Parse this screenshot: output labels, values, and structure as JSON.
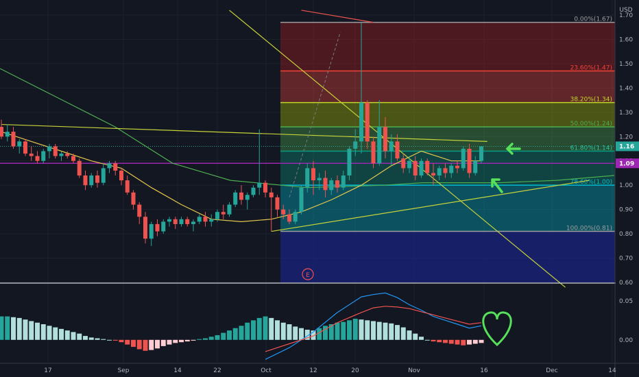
{
  "colors": {
    "background": "#131722",
    "grid": "#1e222d",
    "up": "#26a69a",
    "down": "#ef5350",
    "ma_slow": "#4caf50",
    "ma_fast": "#e6c84a",
    "trendline": "#c8d43a",
    "macd": "#2196f3",
    "signal": "#ef5350",
    "hist_up_strong": "#26a69a",
    "hist_up_weak": "#b2dfdb",
    "hist_down_strong": "#ef5350",
    "hist_down_weak": "#ffcdd2",
    "arrow": "#57e05a",
    "heart": "#57e05a",
    "price_tag": "#26a69a",
    "level_tag": "#9c27b0",
    "earnings": "#ef5350"
  },
  "labels": {
    "currency": "USD",
    "earnings": "E",
    "last_price": "1.16",
    "level_price": "1.09"
  },
  "icons": {
    "arrow_right": "green-arrow-left-icon",
    "arrow_up": "green-arrow-up-icon",
    "heart": "heart-icon"
  },
  "chart_data": {
    "type": "candlestick",
    "price_axis": {
      "ylim": [
        0.6,
        1.7
      ],
      "ticks": [
        "0.60",
        "0.70",
        "0.80",
        "0.90",
        "1.00",
        "1.10",
        "1.20",
        "1.30",
        "1.40",
        "1.50",
        "1.60",
        "1.70"
      ]
    },
    "x_axis": {
      "ticks": [
        "17",
        "Sep",
        "14",
        "22",
        "Oct",
        "12",
        "20",
        "Nov",
        "16",
        "Dec",
        "14"
      ]
    },
    "fib_levels": [
      {
        "label": "0.00%(1.67)",
        "value": 1.67,
        "color": "#b71c1c",
        "line": "#9e9e9e",
        "text": "#9e9e9e"
      },
      {
        "label": "23.60%(1.47)",
        "value": 1.47,
        "color": "#f44336",
        "line": "#f44336",
        "text": "#f44336"
      },
      {
        "label": "38.20%(1.34)",
        "value": 1.34,
        "color": "#b5c900",
        "line": "#c0d729",
        "text": "#c0d729"
      },
      {
        "label": "50.00%(1.24)",
        "value": 1.24,
        "color": "#4caf50",
        "line": "#4caf50",
        "text": "#4caf50"
      },
      {
        "label": "61.80%(1.14)",
        "value": 1.14,
        "color": "#089981",
        "line": "#089981",
        "text": "#26c6a0"
      },
      {
        "label": "78.60%(1.00)",
        "value": 1.0,
        "color": "#00bcd4",
        "line": "#00bcd4",
        "text": "#00bcd4"
      },
      {
        "label": "100.00%(0.81)",
        "value": 0.81,
        "color": "#787b86",
        "line": "#9e9e9e",
        "text": "#9e9e9e"
      }
    ],
    "fib_extension_below": {
      "color": "#1a237e"
    },
    "horizontal_level": 1.09,
    "last_price": 1.16,
    "candles": [
      [
        1.24,
        1.27,
        1.19,
        1.2
      ],
      [
        1.2,
        1.25,
        1.18,
        1.22
      ],
      [
        1.22,
        1.24,
        1.15,
        1.16
      ],
      [
        1.16,
        1.19,
        1.13,
        1.18
      ],
      [
        1.18,
        1.19,
        1.12,
        1.13
      ],
      [
        1.13,
        1.16,
        1.1,
        1.12
      ],
      [
        1.12,
        1.14,
        1.09,
        1.1
      ],
      [
        1.1,
        1.15,
        1.09,
        1.14
      ],
      [
        1.14,
        1.17,
        1.11,
        1.16
      ],
      [
        1.16,
        1.17,
        1.11,
        1.12
      ],
      [
        1.12,
        1.14,
        1.1,
        1.13
      ],
      [
        1.13,
        1.14,
        1.11,
        1.12
      ],
      [
        1.12,
        1.13,
        1.09,
        1.1
      ],
      [
        1.1,
        1.11,
        1.03,
        1.04
      ],
      [
        1.04,
        1.06,
        0.98,
        1.0
      ],
      [
        1.0,
        1.05,
        0.99,
        1.04
      ],
      [
        1.04,
        1.06,
        0.99,
        1.01
      ],
      [
        1.01,
        1.09,
        1.0,
        1.07
      ],
      [
        1.07,
        1.1,
        1.05,
        1.09
      ],
      [
        1.09,
        1.1,
        1.04,
        1.06
      ],
      [
        1.06,
        1.07,
        1.0,
        1.02
      ],
      [
        1.02,
        1.04,
        0.96,
        0.97
      ],
      [
        0.97,
        0.98,
        0.9,
        0.92
      ],
      [
        0.92,
        0.93,
        0.84,
        0.87
      ],
      [
        0.87,
        0.89,
        0.76,
        0.78
      ],
      [
        0.78,
        0.85,
        0.75,
        0.84
      ],
      [
        0.84,
        0.86,
        0.79,
        0.81
      ],
      [
        0.81,
        0.86,
        0.8,
        0.85
      ],
      [
        0.85,
        0.87,
        0.83,
        0.86
      ],
      [
        0.86,
        0.87,
        0.82,
        0.84
      ],
      [
        0.84,
        0.87,
        0.83,
        0.86
      ],
      [
        0.86,
        0.87,
        0.83,
        0.84
      ],
      [
        0.84,
        0.86,
        0.81,
        0.85
      ],
      [
        0.85,
        0.88,
        0.84,
        0.87
      ],
      [
        0.87,
        0.89,
        0.83,
        0.85
      ],
      [
        0.85,
        0.88,
        0.83,
        0.86
      ],
      [
        0.86,
        0.9,
        0.85,
        0.89
      ],
      [
        0.89,
        0.92,
        0.86,
        0.88
      ],
      [
        0.88,
        0.93,
        0.87,
        0.92
      ],
      [
        0.92,
        0.98,
        0.91,
        0.97
      ],
      [
        0.97,
        1.0,
        0.92,
        0.94
      ],
      [
        0.94,
        0.97,
        0.9,
        0.96
      ],
      [
        0.96,
        1.0,
        0.95,
        0.99
      ],
      [
        0.99,
        1.23,
        0.96,
        1.01
      ],
      [
        1.01,
        1.02,
        0.95,
        0.97
      ],
      [
        0.97,
        0.99,
        0.81,
        0.95
      ],
      [
        0.95,
        0.96,
        0.87,
        0.9
      ],
      [
        0.9,
        0.92,
        0.86,
        0.88
      ],
      [
        0.88,
        0.9,
        0.84,
        0.85
      ],
      [
        0.85,
        0.9,
        0.84,
        0.89
      ],
      [
        0.89,
        1.0,
        0.88,
        0.99
      ],
      [
        0.99,
        1.09,
        0.97,
        1.07
      ],
      [
        1.07,
        1.1,
        0.96,
        1.02
      ],
      [
        1.02,
        1.05,
        0.98,
        1.03
      ],
      [
        1.03,
        1.06,
        0.95,
        0.98
      ],
      [
        0.98,
        1.03,
        0.96,
        1.02
      ],
      [
        1.02,
        1.04,
        0.97,
        0.99
      ],
      [
        0.99,
        1.06,
        0.98,
        1.04
      ],
      [
        1.04,
        1.16,
        1.02,
        1.15
      ],
      [
        1.15,
        1.23,
        1.12,
        1.18
      ],
      [
        1.18,
        1.67,
        1.13,
        1.34
      ],
      [
        1.34,
        1.35,
        1.15,
        1.18
      ],
      [
        1.18,
        1.2,
        1.07,
        1.09
      ],
      [
        1.09,
        1.35,
        1.08,
        1.24
      ],
      [
        1.24,
        1.28,
        1.11,
        1.14
      ],
      [
        1.14,
        1.21,
        1.08,
        1.18
      ],
      [
        1.18,
        1.21,
        1.1,
        1.11
      ],
      [
        1.11,
        1.13,
        1.05,
        1.07
      ],
      [
        1.07,
        1.12,
        1.05,
        1.1
      ],
      [
        1.1,
        1.12,
        1.02,
        1.04
      ],
      [
        1.04,
        1.11,
        1.03,
        1.1
      ],
      [
        1.1,
        1.11,
        1.04,
        1.05
      ],
      [
        1.05,
        1.09,
        1.0,
        1.04
      ],
      [
        1.04,
        1.08,
        1.02,
        1.07
      ],
      [
        1.07,
        1.09,
        1.03,
        1.05
      ],
      [
        1.05,
        1.09,
        1.03,
        1.08
      ],
      [
        1.08,
        1.1,
        1.05,
        1.07
      ],
      [
        1.07,
        1.16,
        1.06,
        1.15
      ],
      [
        1.15,
        1.17,
        1.03,
        1.05
      ],
      [
        1.05,
        1.12,
        1.04,
        1.1
      ],
      [
        1.1,
        1.16,
        1.09,
        1.16
      ]
    ],
    "ma_slow": [
      [
        0,
        1.48
      ],
      [
        15,
        1.36
      ],
      [
        30,
        1.24
      ],
      [
        45,
        1.09
      ],
      [
        60,
        1.02
      ],
      [
        80,
        0.99
      ],
      [
        100,
        1.0
      ],
      [
        110,
        1.01
      ],
      [
        130,
        1.01
      ],
      [
        145,
        1.02
      ],
      [
        160,
        1.04
      ]
    ],
    "ma_fast": [
      [
        0,
        1.22
      ],
      [
        5,
        1.18
      ],
      [
        10,
        1.14
      ],
      [
        15,
        1.1
      ],
      [
        20,
        1.07
      ],
      [
        25,
        0.99
      ],
      [
        30,
        0.92
      ],
      [
        35,
        0.86
      ],
      [
        40,
        0.85
      ],
      [
        45,
        0.86
      ],
      [
        50,
        0.89
      ],
      [
        55,
        0.94
      ],
      [
        60,
        1.0
      ],
      [
        65,
        1.08
      ],
      [
        70,
        1.14
      ],
      [
        75,
        1.1
      ],
      [
        80,
        1.1
      ]
    ],
    "trendlines": [
      {
        "from": [
          0.0,
          1.25
        ],
        "to": [
          81,
          1.18
        ],
        "note": "rising support"
      },
      {
        "from": [
          45,
          0.81
        ],
        "to": [
          98,
          1.02
        ],
        "note": "rising support extended"
      },
      {
        "from": [
          38,
          1.72
        ],
        "to": [
          94,
          0.58
        ],
        "note": "falling line"
      },
      {
        "from": [
          50,
          1.72
        ],
        "to": [
          62,
          1.67
        ],
        "note": "top red line"
      }
    ],
    "macd_axis": {
      "ticks": [
        "0.05",
        "0.00"
      ],
      "ylim": [
        -0.03,
        0.07
      ]
    },
    "macd_hist": [
      0.03,
      0.03,
      0.029,
      0.028,
      0.026,
      0.024,
      0.022,
      0.02,
      0.018,
      0.016,
      0.014,
      0.012,
      0.01,
      0.008,
      0.005,
      0.003,
      0.002,
      0.001,
      0.0,
      -0.001,
      -0.003,
      -0.006,
      -0.009,
      -0.012,
      -0.014,
      -0.013,
      -0.011,
      -0.008,
      -0.006,
      -0.004,
      -0.003,
      -0.002,
      -0.001,
      0.001,
      0.002,
      0.004,
      0.006,
      0.009,
      0.012,
      0.015,
      0.018,
      0.022,
      0.025,
      0.028,
      0.03,
      0.028,
      0.025,
      0.022,
      0.02,
      0.017,
      0.015,
      0.013,
      0.012,
      0.015,
      0.018,
      0.02,
      0.022,
      0.023,
      0.025,
      0.027,
      0.026,
      0.025,
      0.024,
      0.023,
      0.022,
      0.021,
      0.019,
      0.016,
      0.012,
      0.008,
      0.004,
      0.0,
      -0.002,
      -0.003,
      -0.004,
      -0.005,
      -0.006,
      -0.007,
      -0.006,
      -0.005,
      -0.004
    ],
    "macd_line": [
      [
        44,
        -0.025
      ],
      [
        48,
        -0.01
      ],
      [
        52,
        0.01
      ],
      [
        56,
        0.035
      ],
      [
        58,
        0.045
      ],
      [
        60,
        0.055
      ],
      [
        62,
        0.058
      ],
      [
        64,
        0.06
      ],
      [
        66,
        0.054
      ],
      [
        68,
        0.045
      ],
      [
        70,
        0.038
      ],
      [
        72,
        0.03
      ],
      [
        74,
        0.025
      ],
      [
        76,
        0.02
      ],
      [
        78,
        0.015
      ],
      [
        80,
        0.018
      ]
    ],
    "signal_line": [
      [
        44,
        -0.015
      ],
      [
        48,
        -0.005
      ],
      [
        52,
        0.005
      ],
      [
        56,
        0.022
      ],
      [
        60,
        0.035
      ],
      [
        62,
        0.041
      ],
      [
        64,
        0.043
      ],
      [
        66,
        0.042
      ],
      [
        68,
        0.04
      ],
      [
        70,
        0.036
      ],
      [
        72,
        0.032
      ],
      [
        74,
        0.028
      ],
      [
        76,
        0.024
      ],
      [
        78,
        0.02
      ],
      [
        80,
        0.022
      ]
    ]
  }
}
